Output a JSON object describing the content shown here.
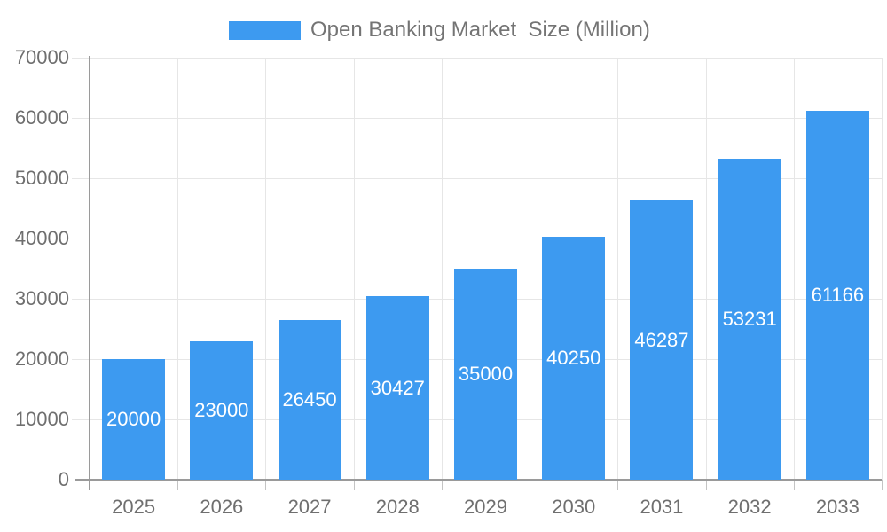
{
  "legend": {
    "label": "Open Banking Market  Size (Million)",
    "swatch_color": "#3d9af0"
  },
  "chart_data": {
    "type": "bar",
    "title": "Open Banking Market  Size (Million)",
    "series_name": "Open Banking Market Size (Million)",
    "categories": [
      "2025",
      "2026",
      "2027",
      "2028",
      "2029",
      "2030",
      "2031",
      "2032",
      "2033"
    ],
    "values": [
      20000,
      23000,
      26450,
      30427,
      35000,
      40250,
      46287,
      53231,
      61166
    ],
    "data_labels": [
      "20000",
      "23000",
      "26450",
      "30427",
      "35000",
      "40250",
      "46287",
      "53231",
      "61166"
    ],
    "xlabel": "",
    "ylabel": "",
    "ylim": [
      0,
      70000
    ],
    "ytick_step": 10000,
    "yticks": [
      "0",
      "10000",
      "20000",
      "30000",
      "40000",
      "50000",
      "60000",
      "70000"
    ],
    "grid": true,
    "legend_position": "top",
    "bar_color": "#3d9af0",
    "bar_label_color": "#ffffff",
    "axis_label_color": "#6f6f6f",
    "grid_color": "#e6e6e6",
    "axis_line_color": "#9a9a9a"
  }
}
